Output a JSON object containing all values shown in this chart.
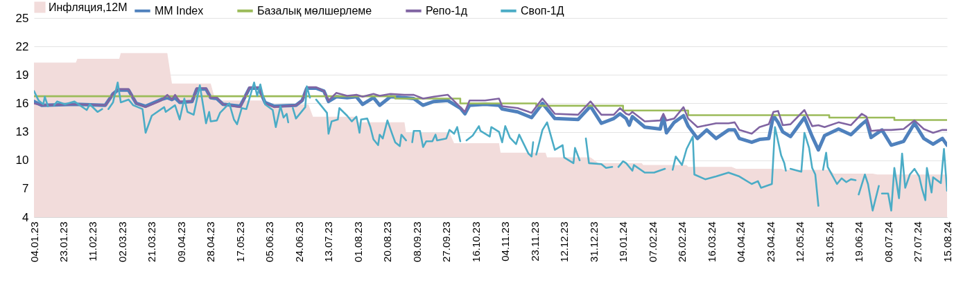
{
  "chart_data": {
    "type": "line",
    "xlim": [
      "2023-01-04",
      "2024-08-15"
    ],
    "ylim": [
      4,
      25
    ],
    "yticks": [
      4,
      7,
      10,
      13,
      16,
      19,
      22,
      25
    ],
    "grid": "y",
    "legend": "top",
    "xticks": [
      {
        "value": "2023-01-04",
        "label": "04.01.23"
      },
      {
        "value": "2023-01-23",
        "label": "23.01.23"
      },
      {
        "value": "2023-02-11",
        "label": "11.02.23"
      },
      {
        "value": "2023-03-02",
        "label": "02.03.23"
      },
      {
        "value": "2023-03-21",
        "label": "21.03.23"
      },
      {
        "value": "2023-04-09",
        "label": "09.04.23"
      },
      {
        "value": "2023-04-28",
        "label": "28.04.23"
      },
      {
        "value": "2023-05-17",
        "label": "17.05.23"
      },
      {
        "value": "2023-06-05",
        "label": "05.06.23"
      },
      {
        "value": "2023-06-24",
        "label": "24.06.23"
      },
      {
        "value": "2023-07-13",
        "label": "13.07.23"
      },
      {
        "value": "2023-08-01",
        "label": "01.08.23"
      },
      {
        "value": "2023-08-20",
        "label": "20.08.23"
      },
      {
        "value": "2023-09-08",
        "label": "08.09.23"
      },
      {
        "value": "2023-09-27",
        "label": "27.09.23"
      },
      {
        "value": "2023-10-16",
        "label": "16.10.23"
      },
      {
        "value": "2023-11-04",
        "label": "04.11.23"
      },
      {
        "value": "2023-11-23",
        "label": "23.11.23"
      },
      {
        "value": "2023-12-12",
        "label": "12.12.23"
      },
      {
        "value": "2023-12-31",
        "label": "31.12.23"
      },
      {
        "value": "2024-01-19",
        "label": "19.01.24"
      },
      {
        "value": "2024-02-07",
        "label": "07.02.24"
      },
      {
        "value": "2024-02-26",
        "label": "26.02.24"
      },
      {
        "value": "2024-03-16",
        "label": "16.03.24"
      },
      {
        "value": "2024-04-04",
        "label": "04.04.24"
      },
      {
        "value": "2024-04-23",
        "label": "23.04.24"
      },
      {
        "value": "2024-05-12",
        "label": "12.05.24"
      },
      {
        "value": "2024-05-31",
        "label": "31.05.24"
      },
      {
        "value": "2024-06-19",
        "label": "19.06.24"
      },
      {
        "value": "2024-07-08",
        "label": "08.07.24"
      },
      {
        "value": "2024-07-27",
        "label": "27.07.24"
      },
      {
        "value": "2024-08-15",
        "label": "15.08.24"
      }
    ],
    "series": [
      {
        "name": "Инфляция,12М",
        "type": "area",
        "color": "#f2dcdb",
        "x": [
          "2023-01-04",
          "2023-01-31",
          "2023-02-01",
          "2023-02-28",
          "2023-03-01",
          "2023-03-31",
          "2023-04-03",
          "2023-04-28",
          "2023-05-01",
          "2023-05-31",
          "2023-06-01",
          "2023-06-30",
          "2023-07-03",
          "2023-07-31",
          "2023-08-01",
          "2023-08-31",
          "2023-09-01",
          "2023-09-29",
          "2023-10-02",
          "2023-10-31",
          "2023-11-01",
          "2023-11-30",
          "2023-12-01",
          "2023-12-29",
          "2024-01-03",
          "2024-01-31",
          "2024-02-01",
          "2024-02-29",
          "2024-03-01",
          "2024-03-29",
          "2024-04-01",
          "2024-04-30",
          "2024-05-02",
          "2024-05-31",
          "2024-06-03",
          "2024-06-28",
          "2024-07-01",
          "2024-08-15"
        ],
        "values": [
          20.3,
          20.3,
          20.7,
          20.7,
          21.3,
          21.3,
          18.1,
          18.1,
          16.3,
          16.3,
          15.9,
          15.9,
          14.6,
          14.6,
          14.0,
          14.0,
          12.9,
          12.9,
          11.8,
          11.8,
          10.8,
          10.8,
          10.3,
          10.3,
          9.7,
          9.7,
          9.5,
          9.5,
          9.3,
          9.3,
          9.1,
          9.1,
          9.0,
          9.0,
          8.6,
          8.6,
          8.5,
          8.5
        ]
      },
      {
        "name": "MM Index",
        "type": "line",
        "color": "#4f81bd",
        "x": [
          "2023-01-04",
          "2023-01-09",
          "2023-01-31",
          "2023-02-19",
          "2023-02-24",
          "2023-02-27",
          "2023-03-06",
          "2023-03-11",
          "2023-03-17",
          "2023-03-27",
          "2023-03-31",
          "2023-04-03",
          "2023-04-05",
          "2023-04-08",
          "2023-04-16",
          "2023-04-19",
          "2023-04-25",
          "2023-04-28",
          "2023-05-02",
          "2023-05-06",
          "2023-05-17",
          "2023-05-23",
          "2023-05-29",
          "2023-06-02",
          "2023-06-08",
          "2023-06-22",
          "2023-06-26",
          "2023-06-29",
          "2023-07-05",
          "2023-07-10",
          "2023-07-13",
          "2023-07-18",
          "2023-07-25",
          "2023-07-31",
          "2023-08-04",
          "2023-08-11",
          "2023-08-15",
          "2023-08-22",
          "2023-08-31",
          "2023-09-06",
          "2023-09-12",
          "2023-09-19",
          "2023-09-28",
          "2023-10-06",
          "2023-10-09",
          "2023-10-12",
          "2023-10-22",
          "2023-10-31",
          "2023-11-02",
          "2023-11-12",
          "2023-11-21",
          "2023-11-28",
          "2023-12-06",
          "2023-12-21",
          "2023-12-29",
          "2024-01-05",
          "2024-01-13",
          "2024-01-17",
          "2024-01-21",
          "2024-01-23",
          "2024-01-25",
          "2024-02-02",
          "2024-02-12",
          "2024-02-14",
          "2024-02-16",
          "2024-02-21",
          "2024-02-27",
          "2024-03-01",
          "2024-03-07",
          "2024-03-13",
          "2024-03-19",
          "2024-03-27",
          "2024-03-31",
          "2024-04-03",
          "2024-04-11",
          "2024-04-16",
          "2024-04-22",
          "2024-04-25",
          "2024-04-28",
          "2024-05-01",
          "2024-05-06",
          "2024-05-15",
          "2024-05-20",
          "2024-05-24",
          "2024-05-28",
          "2024-06-06",
          "2024-06-14",
          "2024-06-21",
          "2024-06-24",
          "2024-06-27",
          "2024-07-04",
          "2024-07-10",
          "2024-07-18",
          "2024-07-25",
          "2024-07-31",
          "2024-08-06",
          "2024-08-12",
          "2024-08-15"
        ],
        "values": [
          16.2,
          15.8,
          15.9,
          15.8,
          17.0,
          17.4,
          17.4,
          16.0,
          15.7,
          16.4,
          16.6,
          16.4,
          16.6,
          16.1,
          16.2,
          17.5,
          17.5,
          16.6,
          16.5,
          15.9,
          15.7,
          17.6,
          17.6,
          16.1,
          15.7,
          15.8,
          16.3,
          17.6,
          17.6,
          17.3,
          16.2,
          16.7,
          16.6,
          16.7,
          15.9,
          16.6,
          15.8,
          16.7,
          16.6,
          16.5,
          15.8,
          16.2,
          16.3,
          15.5,
          14.9,
          15.8,
          15.9,
          15.8,
          15.4,
          15.1,
          14.5,
          16.0,
          14.4,
          14.3,
          15.7,
          13.9,
          14.4,
          14.9,
          14.4,
          13.7,
          14.6,
          13.5,
          13.3,
          14.6,
          12.9,
          14.0,
          14.7,
          13.6,
          12.3,
          13.2,
          12.3,
          13.2,
          13.2,
          12.3,
          11.9,
          12.2,
          12.3,
          14.7,
          14.0,
          13.0,
          12.5,
          14.5,
          12.5,
          11.1,
          12.6,
          13.3,
          12.7,
          13.8,
          14.2,
          12.4,
          13.2,
          11.6,
          12.0,
          13.9,
          12.3,
          11.7,
          12.3,
          11.6
        ]
      },
      {
        "name": "Базалық мөлшерлеме",
        "type": "step",
        "color": "#9bbb59",
        "x": [
          "2023-01-04",
          "2023-08-25",
          "2023-10-06",
          "2023-11-24",
          "2024-01-19",
          "2024-03-01",
          "2024-05-31",
          "2024-07-12",
          "2024-08-15"
        ],
        "values": [
          16.75,
          16.5,
          16.0,
          15.75,
          15.25,
          14.75,
          14.5,
          14.25,
          14.25
        ]
      },
      {
        "name": "Репо-1д",
        "type": "line",
        "color": "#8064a2",
        "x": [
          "2023-01-04",
          "2023-01-09",
          "2023-01-31",
          "2023-02-19",
          "2023-02-24",
          "2023-02-27",
          "2023-03-06",
          "2023-03-11",
          "2023-03-17",
          "2023-03-27",
          "2023-03-31",
          "2023-04-03",
          "2023-04-05",
          "2023-04-08",
          "2023-04-16",
          "2023-04-19",
          "2023-04-25",
          "2023-04-28",
          "2023-05-02",
          "2023-05-06",
          "2023-05-17",
          "2023-05-23",
          "2023-05-29",
          "2023-06-02",
          "2023-06-08",
          "2023-06-22",
          "2023-06-26",
          "2023-06-29",
          "2023-07-05",
          "2023-07-10",
          "2023-07-13",
          "2023-07-18",
          "2023-07-25",
          "2023-07-31",
          "2023-08-04",
          "2023-08-11",
          "2023-08-15",
          "2023-08-22",
          "2023-08-31",
          "2023-09-06",
          "2023-09-12",
          "2023-09-19",
          "2023-09-28",
          "2023-10-06",
          "2023-10-09",
          "2023-10-12",
          "2023-10-22",
          "2023-10-31",
          "2023-11-02",
          "2023-11-12",
          "2023-11-21",
          "2023-11-28",
          "2023-12-06",
          "2023-12-21",
          "2023-12-29",
          "2024-01-05",
          "2024-01-13",
          "2024-01-17",
          "2024-01-21",
          "2024-01-23",
          "2024-01-25",
          "2024-02-02",
          "2024-02-12",
          "2024-02-14",
          "2024-02-16",
          "2024-02-21",
          "2024-02-27",
          "2024-03-01",
          "2024-03-07",
          "2024-03-13",
          "2024-03-19",
          "2024-03-27",
          "2024-03-31",
          "2024-04-03",
          "2024-04-11",
          "2024-04-16",
          "2024-04-22",
          "2024-04-25",
          "2024-04-28",
          "2024-05-01",
          "2024-05-06",
          "2024-05-15",
          "2024-05-20",
          "2024-05-24",
          "2024-05-28",
          "2024-06-06",
          "2024-06-14",
          "2024-06-21",
          "2024-06-24",
          "2024-06-27",
          "2024-07-04",
          "2024-07-10",
          "2024-07-18",
          "2024-07-25",
          "2024-07-31",
          "2024-08-06",
          "2024-08-12",
          "2024-08-15"
        ],
        "values": [
          16.0,
          15.8,
          15.9,
          15.8,
          17.0,
          17.5,
          17.5,
          16.0,
          15.6,
          16.3,
          16.9,
          16.4,
          16.9,
          16.2,
          16.2,
          17.6,
          17.6,
          16.6,
          16.6,
          15.9,
          15.6,
          17.7,
          17.7,
          16.0,
          15.6,
          15.8,
          16.3,
          17.7,
          17.7,
          17.3,
          16.3,
          17.1,
          16.8,
          16.9,
          16.7,
          17.0,
          16.8,
          17.0,
          16.9,
          16.9,
          16.5,
          16.7,
          16.9,
          15.6,
          15.1,
          16.3,
          16.3,
          16.5,
          15.7,
          15.5,
          15.0,
          16.5,
          14.9,
          14.8,
          16.2,
          14.8,
          14.8,
          15.5,
          14.9,
          14.8,
          15.1,
          14.1,
          14.2,
          14.9,
          14.2,
          14.4,
          15.6,
          14.4,
          13.5,
          13.7,
          13.9,
          13.9,
          14.0,
          13.2,
          12.8,
          13.5,
          13.8,
          15.1,
          15.2,
          13.7,
          13.8,
          15.3,
          13.6,
          13.7,
          13.5,
          14.0,
          13.7,
          14.9,
          14.6,
          13.1,
          13.2,
          13.2,
          13.3,
          14.2,
          13.3,
          12.9,
          13.2,
          13.2
        ]
      },
      {
        "name": "Своп-1Д",
        "type": "line",
        "color": "#4bacc6",
        "x": [
          "2023-01-04",
          "2023-01-07",
          "2023-01-10",
          "2023-01-11",
          "2023-01-13",
          "2023-01-15",
          "2023-01-17",
          "2023-01-19",
          "2023-01-24",
          "2023-01-30",
          "2023-02-07",
          "2023-02-09",
          "2023-02-14",
          "2023-02-17",
          "2023-02-19",
          "2023-02-21",
          "2023-02-24",
          "2023-02-27",
          "2023-03-01",
          "2023-03-06",
          "2023-03-09",
          "2023-03-15",
          "2023-03-17",
          "2023-03-21",
          "2023-03-29",
          "2023-03-30",
          "2023-04-05",
          "2023-04-08",
          "2023-04-11",
          "2023-04-13",
          "2023-04-17",
          "2023-04-21",
          "2023-04-25",
          "2023-04-27",
          "2023-04-28",
          "2023-05-02",
          "2023-05-04",
          "2023-05-10",
          "2023-05-13",
          "2023-05-15",
          "2023-05-18",
          "2023-05-21",
          "2023-05-26",
          "2023-05-28",
          "2023-05-30",
          "2023-06-02",
          "2023-06-07",
          "2023-06-09",
          "2023-06-12",
          "2023-06-14",
          "2023-06-16",
          "2023-06-17",
          "2023-06-18",
          "2023-06-20",
          "2023-06-22",
          "2023-06-28",
          "2023-06-29",
          "2023-07-01",
          "2023-07-03",
          "2023-07-05",
          "2023-07-08",
          "2023-07-12",
          "2023-07-13",
          "2023-07-15",
          "2023-07-19",
          "2023-07-20",
          "2023-07-25",
          "2023-07-28",
          "2023-07-31",
          "2023-08-02",
          "2023-08-03",
          "2023-08-07",
          "2023-08-09",
          "2023-08-11",
          "2023-08-14",
          "2023-08-15",
          "2023-08-17",
          "2023-08-20",
          "2023-08-23",
          "2023-08-25",
          "2023-08-28",
          "2023-08-29",
          "2023-09-01",
          "2023-09-03",
          "2023-09-05",
          "2023-09-06",
          "2023-09-10",
          "2023-09-12",
          "2023-09-14",
          "2023-09-18",
          "2023-09-20",
          "2023-09-21",
          "2023-09-27",
          "2023-09-29",
          "2023-10-02",
          "2023-10-04",
          "2023-10-06",
          "2023-10-08",
          "2023-10-10",
          "2023-10-14",
          "2023-10-18",
          "2023-10-19",
          "2023-10-25",
          "2023-10-26",
          "2023-10-31",
          "2023-11-02",
          "2023-11-04",
          "2023-11-07",
          "2023-11-11",
          "2023-11-13",
          "2023-11-16",
          "2023-11-19",
          "2023-11-21",
          "2023-11-22",
          "2023-11-23",
          "2023-11-24",
          "2023-11-28",
          "2023-12-01",
          "2023-12-06",
          "2023-12-11",
          "2023-12-12",
          "2023-12-18",
          "2023-12-19",
          "2023-12-22",
          "2023-12-24",
          "2023-12-26",
          "2023-12-28",
          "2024-01-05",
          "2024-01-08",
          "2024-01-12",
          "2024-01-14",
          "2024-01-16",
          "2024-01-19",
          "2024-01-21",
          "2024-01-25",
          "2024-01-26",
          "2024-02-02",
          "2024-02-08",
          "2024-02-15",
          "2024-02-17",
          "2024-02-20",
          "2024-02-22",
          "2024-02-26",
          "2024-02-29",
          "2024-03-04",
          "2024-03-05",
          "2024-03-12",
          "2024-03-19",
          "2024-03-27",
          "2024-04-03",
          "2024-04-11",
          "2024-04-15",
          "2024-04-17",
          "2024-04-24",
          "2024-04-26",
          "2024-04-30",
          "2024-05-02",
          "2024-05-03",
          "2024-05-04",
          "2024-05-06",
          "2024-05-13",
          "2024-05-15",
          "2024-05-18",
          "2024-05-20",
          "2024-05-22",
          "2024-05-24",
          "2024-05-26",
          "2024-05-27",
          "2024-05-29",
          "2024-05-30",
          "2024-06-05",
          "2024-06-08",
          "2024-06-11",
          "2024-06-14",
          "2024-06-17",
          "2024-06-18",
          "2024-06-19",
          "2024-06-23",
          "2024-06-25",
          "2024-06-28",
          "2024-07-02",
          "2024-07-03",
          "2024-07-04",
          "2024-07-08",
          "2024-07-10",
          "2024-07-12",
          "2024-07-15",
          "2024-07-17",
          "2024-07-19",
          "2024-07-22",
          "2024-07-25",
          "2024-07-28",
          "2024-07-30",
          "2024-08-01",
          "2024-08-02",
          "2024-08-05",
          "2024-08-06",
          "2024-08-11",
          "2024-08-13",
          "2024-08-15"
        ],
        "values": [
          17.3,
          16.3,
          15.9,
          16.7,
          15.7,
          null,
          15.8,
          16.2,
          15.9,
          16.2,
          15.3,
          15.9,
          15.1,
          15.4,
          null,
          15.4,
          16.1,
          18.2,
          16.1,
          16.4,
          15.8,
          15.4,
          12.9,
          14.7,
          15.6,
          15.1,
          15.8,
          14.3,
          16.5,
          15.1,
          14.8,
          17.9,
          13.9,
          15.1,
          14.1,
          14.2,
          15.0,
          16.0,
          14.3,
          13.8,
          15.5,
          15.4,
          18.2,
          16.8,
          18.0,
          15.9,
          15.3,
          13.5,
          15.7,
          14.5,
          14.9,
          14.0,
          null,
          15.5,
          14.4,
          15.6,
          17.8,
          16.6,
          null,
          16.4,
          15.8,
          15.0,
          12.8,
          14.1,
          14.3,
          15.5,
          14.7,
          14.1,
          14.6,
          12.9,
          14.3,
          14.4,
          13.5,
          12.2,
          11.6,
          12.7,
          12.3,
          14.2,
          12.8,
          11.9,
          11.5,
          12.7,
          12.1,
          null,
          11.9,
          13.1,
          13.1,
          11.4,
          12.0,
          12.0,
          12.7,
          12.1,
          12.3,
          13.2,
          12.8,
          13.5,
          12.0,
          null,
          12.1,
          12.6,
          13.6,
          13.1,
          12.5,
          13.5,
          13.0,
          11.9,
          13.6,
          12.4,
          11.7,
          12.7,
          11.7,
          10.7,
          10.4,
          11.9,
          null,
          10.6,
          13.2,
          14.0,
          11.1,
          11.6,
          10.3,
          9.7,
          11.3,
          10.0,
          null,
          12.3,
          9.7,
          9.6,
          9.2,
          9.3,
          null,
          9.3,
          9.9,
          9.7,
          8.9,
          9.5,
          8.7,
          8.7,
          9.1,
          null,
          9.0,
          10.4,
          9.5,
          11.2,
          12.5,
          8.5,
          8.0,
          8.3,
          8.7,
          8.3,
          7.5,
          7.8,
          7.1,
          7.5,
          13.5,
          10.5,
          9.7,
          8.9,
          null,
          9.1,
          8.8,
          12.9,
          11.3,
          9.2,
          8.5,
          5.2,
          null,
          9.0,
          10.8,
          9.3,
          7.5,
          8.1,
          7.7,
          8.0,
          7.9,
          null,
          6.4,
          8.5,
          7.5,
          4.7,
          7.3,
          null,
          6.5,
          6.5,
          4.7,
          9.2,
          6.0,
          10.7,
          7.1,
          8.5,
          9.1,
          8.3,
          6.9,
          5.8,
          9.2,
          6.6,
          8.2,
          7.6,
          11.2,
          6.8
        ]
      }
    ]
  }
}
